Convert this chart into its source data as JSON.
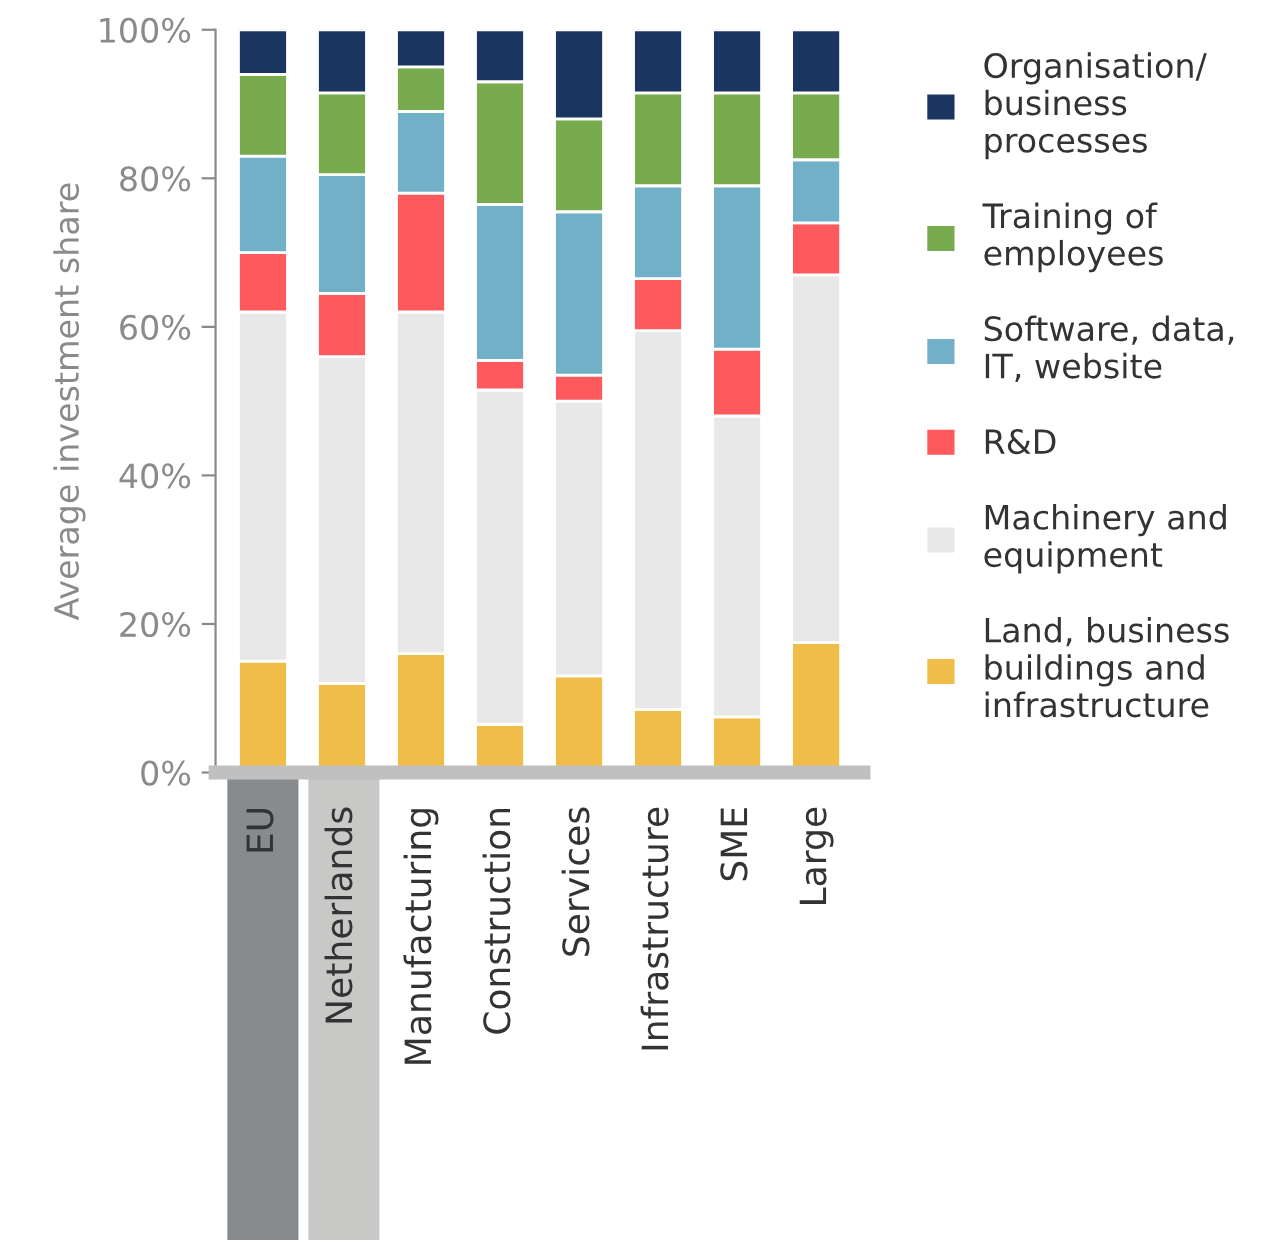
{
  "chart_data": {
    "type": "bar",
    "stacked": true,
    "ylabel": "Average investment share",
    "categories": [
      "EU",
      "Netherlands",
      "Manufacturing",
      "Construction",
      "Services",
      "Infrastructure",
      "SME",
      "Large"
    ],
    "series": [
      {
        "name": "Land, business buildings and infrastructure",
        "color": "#f0be48",
        "values": [
          15,
          12,
          16,
          6.5,
          13,
          8.5,
          7.5,
          17.5
        ]
      },
      {
        "name": "Machinery and equipment",
        "color": "#e8e8e8",
        "values": [
          47,
          44,
          46,
          45,
          37,
          51,
          40.5,
          49.5
        ]
      },
      {
        "name": "R&D",
        "color": "#fe5a5e",
        "values": [
          8,
          8.5,
          16,
          4,
          3.5,
          7,
          9,
          7
        ]
      },
      {
        "name": "Software, data, IT, website",
        "color": "#72b0c8",
        "values": [
          13,
          16,
          11,
          21,
          22,
          12.5,
          22,
          8.5
        ]
      },
      {
        "name": "Training of employees",
        "color": "#77ab4d",
        "values": [
          11,
          11,
          6,
          16.5,
          12.5,
          12.5,
          12.5,
          9
        ]
      },
      {
        "name": "Organisation/ business processes",
        "color": "#1a3660",
        "values": [
          6,
          8.5,
          5,
          7,
          12,
          8.5,
          8.5,
          8.5
        ]
      }
    ],
    "ylim": [
      0,
      100
    ],
    "yticks": [
      {
        "value": 0,
        "label": "0%"
      },
      {
        "value": 20,
        "label": "20%"
      },
      {
        "value": 40,
        "label": "40%"
      },
      {
        "value": 60,
        "label": "60%"
      },
      {
        "value": 80,
        "label": "80%"
      },
      {
        "value": 100,
        "label": "100%"
      }
    ],
    "grid": false,
    "legend": "right"
  }
}
